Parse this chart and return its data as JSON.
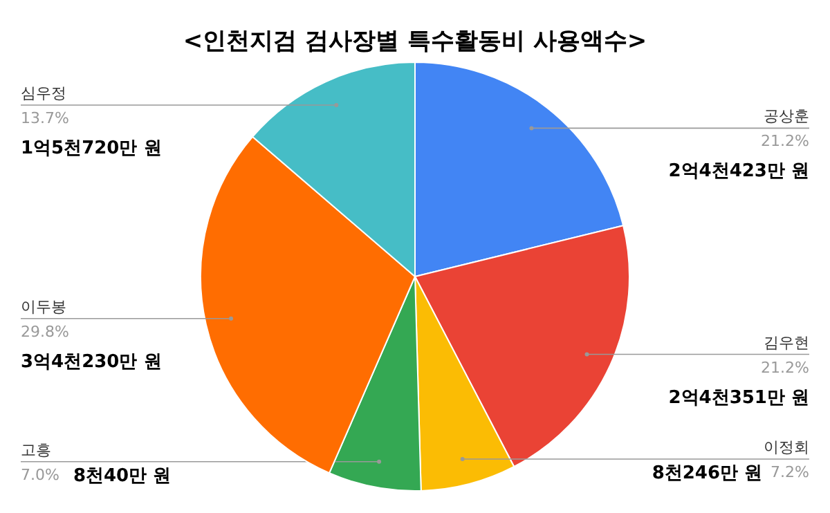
{
  "chart_data": {
    "type": "pie",
    "title": "<인천지검 검사장별 특수활동비 사용액수>",
    "categories": [
      "공상훈",
      "김우현",
      "이정회",
      "고흥",
      "이두봉",
      "심우정"
    ],
    "values": [
      21.2,
      21.2,
      7.2,
      7.0,
      29.8,
      13.7
    ],
    "colors": [
      "#4285f4",
      "#ea4335",
      "#fbbc04",
      "#34a853",
      "#ff6d01",
      "#46bdc6"
    ],
    "value_labels": [
      "21.2%",
      "21.2%",
      "7.2%",
      "7.0%",
      "29.8%",
      "13.7%"
    ],
    "annotations": [
      {
        "text": "2억4천423만 원",
        "x": "공상훈"
      },
      {
        "text": "2억4천351만 원",
        "x": "김우현"
      },
      {
        "text": "8천246만 원",
        "x": "이정회"
      },
      {
        "text": "8천40만 원",
        "x": "고흥"
      },
      {
        "text": "3억4천230만 원",
        "x": "이두봉"
      },
      {
        "text": "1억5천720만 원",
        "x": "심우정"
      }
    ]
  }
}
